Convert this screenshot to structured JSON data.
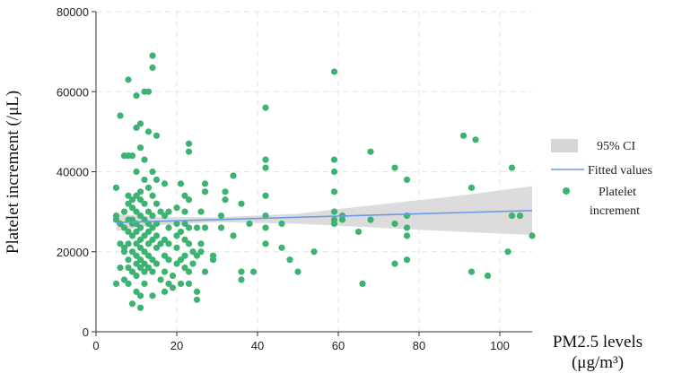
{
  "chart_data": {
    "type": "scatter",
    "xlabel_line1": "PM2.5 levels",
    "xlabel_line2": "(μg/m³)",
    "ylabel": "Platelet increment (/μL)",
    "xlim": [
      0,
      108
    ],
    "ylim": [
      0,
      80000
    ],
    "xticks": [
      0,
      20,
      40,
      60,
      80,
      100
    ],
    "yticks": [
      0,
      20000,
      40000,
      60000,
      80000
    ],
    "grid": true,
    "legend_position": "right",
    "legend": {
      "ci_label": "95% CI",
      "fit_label": "Fitted values",
      "points_label_line1": "Platelet",
      "points_label_line2": "increment"
    },
    "colors": {
      "points": "#3cb371",
      "fit_line": "#6b9ae8",
      "ci_band": "#d6d6d6",
      "grid": "#e6e6e6"
    },
    "fit_line": {
      "x": [
        5,
        108
      ],
      "y": [
        27300,
        30300
      ]
    },
    "ci_band": {
      "x": [
        5,
        15,
        30,
        50,
        70,
        90,
        108
      ],
      "lower": [
        25200,
        26600,
        27400,
        27000,
        26000,
        25000,
        24200
      ],
      "upper": [
        29400,
        28700,
        28600,
        29500,
        31800,
        34000,
        36400
      ]
    },
    "points": [
      [
        5,
        36000
      ],
      [
        5,
        12000
      ],
      [
        5,
        29000
      ],
      [
        5,
        28000
      ],
      [
        6,
        54000
      ],
      [
        6,
        22000
      ],
      [
        6,
        16000
      ],
      [
        6,
        27000
      ],
      [
        7,
        44000
      ],
      [
        7,
        20000
      ],
      [
        7,
        13000
      ],
      [
        7,
        26000
      ],
      [
        7,
        30000
      ],
      [
        7,
        21000
      ],
      [
        8,
        63000
      ],
      [
        8,
        44000
      ],
      [
        8,
        34000
      ],
      [
        8,
        32000
      ],
      [
        8,
        28000
      ],
      [
        8,
        25000
      ],
      [
        8,
        22000
      ],
      [
        8,
        18000
      ],
      [
        8,
        16000
      ],
      [
        8,
        12000
      ],
      [
        9,
        44000
      ],
      [
        9,
        33000
      ],
      [
        9,
        31000
      ],
      [
        9,
        28000
      ],
      [
        9,
        27000
      ],
      [
        9,
        24000
      ],
      [
        9,
        20000
      ],
      [
        9,
        15000
      ],
      [
        9,
        7000
      ],
      [
        10,
        59000
      ],
      [
        10,
        51000
      ],
      [
        10,
        40000
      ],
      [
        10,
        34000
      ],
      [
        10,
        30000
      ],
      [
        10,
        27000
      ],
      [
        10,
        25000
      ],
      [
        10,
        22000
      ],
      [
        10,
        19000
      ],
      [
        10,
        17000
      ],
      [
        10,
        14000
      ],
      [
        10,
        10000
      ],
      [
        11,
        52000
      ],
      [
        11,
        46000
      ],
      [
        11,
        35000
      ],
      [
        11,
        33000
      ],
      [
        11,
        29000
      ],
      [
        11,
        26000
      ],
      [
        11,
        23000
      ],
      [
        11,
        21000
      ],
      [
        11,
        18000
      ],
      [
        11,
        16000
      ],
      [
        11,
        9000
      ],
      [
        11,
        6000
      ],
      [
        12,
        60000
      ],
      [
        12,
        43000
      ],
      [
        12,
        38000
      ],
      [
        12,
        32000
      ],
      [
        12,
        28000
      ],
      [
        12,
        24000
      ],
      [
        12,
        20000
      ],
      [
        12,
        17000
      ],
      [
        12,
        15000
      ],
      [
        12,
        12000
      ],
      [
        13,
        60000
      ],
      [
        13,
        50000
      ],
      [
        13,
        36000
      ],
      [
        13,
        30000
      ],
      [
        13,
        27000
      ],
      [
        13,
        25000
      ],
      [
        13,
        22000
      ],
      [
        13,
        19000
      ],
      [
        13,
        16000
      ],
      [
        14,
        69000
      ],
      [
        14,
        66000
      ],
      [
        14,
        40000
      ],
      [
        14,
        34000
      ],
      [
        14,
        29000
      ],
      [
        14,
        26000
      ],
      [
        14,
        23000
      ],
      [
        14,
        18000
      ],
      [
        14,
        15000
      ],
      [
        14,
        9000
      ],
      [
        15,
        49000
      ],
      [
        15,
        38000
      ],
      [
        15,
        32000
      ],
      [
        15,
        27000
      ],
      [
        15,
        24000
      ],
      [
        15,
        21000
      ],
      [
        15,
        17000
      ],
      [
        16,
        30000
      ],
      [
        16,
        22000
      ],
      [
        16,
        13000
      ],
      [
        17,
        37000
      ],
      [
        17,
        29000
      ],
      [
        17,
        23000
      ],
      [
        17,
        19000
      ],
      [
        17,
        15000
      ],
      [
        17,
        10000
      ],
      [
        18,
        30000
      ],
      [
        18,
        26000
      ],
      [
        18,
        22000
      ],
      [
        18,
        18000
      ],
      [
        18,
        12000
      ],
      [
        19,
        11000
      ],
      [
        19,
        14000
      ],
      [
        20,
        31000
      ],
      [
        20,
        27000
      ],
      [
        20,
        24000
      ],
      [
        20,
        21000
      ],
      [
        20,
        17000
      ],
      [
        21,
        37000
      ],
      [
        21,
        25000
      ],
      [
        21,
        18000
      ],
      [
        21,
        12000
      ],
      [
        22,
        34000
      ],
      [
        22,
        30000
      ],
      [
        22,
        27000
      ],
      [
        22,
        23000
      ],
      [
        22,
        19000
      ],
      [
        22,
        16000
      ],
      [
        23,
        47000
      ],
      [
        23,
        45000
      ],
      [
        23,
        33000
      ],
      [
        23,
        26000
      ],
      [
        23,
        22000
      ],
      [
        23,
        15000
      ],
      [
        23,
        12000
      ],
      [
        24,
        20000
      ],
      [
        24,
        17000
      ],
      [
        25,
        26000
      ],
      [
        25,
        19000
      ],
      [
        25,
        10000
      ],
      [
        25,
        8000
      ],
      [
        26,
        30000
      ],
      [
        26,
        22000
      ],
      [
        26,
        20000
      ],
      [
        27,
        37000
      ],
      [
        27,
        35000
      ],
      [
        27,
        26000
      ],
      [
        27,
        15000
      ],
      [
        29,
        19000
      ],
      [
        29,
        18000
      ],
      [
        31,
        29000
      ],
      [
        31,
        26000
      ],
      [
        32,
        35000
      ],
      [
        32,
        33000
      ],
      [
        34,
        39000
      ],
      [
        34,
        24000
      ],
      [
        36,
        13000
      ],
      [
        36,
        15000
      ],
      [
        36,
        32000
      ],
      [
        38,
        27000
      ],
      [
        39,
        15000
      ],
      [
        42,
        56000
      ],
      [
        42,
        43000
      ],
      [
        42,
        41000
      ],
      [
        42,
        34000
      ],
      [
        42,
        29000
      ],
      [
        42,
        26000
      ],
      [
        42,
        22000
      ],
      [
        46,
        27000
      ],
      [
        46,
        21000
      ],
      [
        48,
        18000
      ],
      [
        50,
        15000
      ],
      [
        54,
        20000
      ],
      [
        59,
        65000
      ],
      [
        59,
        43000
      ],
      [
        59,
        40000
      ],
      [
        59,
        35000
      ],
      [
        59,
        30000
      ],
      [
        59,
        28000
      ],
      [
        59,
        27000
      ],
      [
        61,
        29000
      ],
      [
        61,
        28000
      ],
      [
        65,
        25000
      ],
      [
        66,
        12000
      ],
      [
        68,
        45000
      ],
      [
        68,
        28000
      ],
      [
        74,
        41000
      ],
      [
        74,
        27000
      ],
      [
        74,
        17000
      ],
      [
        77,
        38000
      ],
      [
        77,
        29000
      ],
      [
        77,
        26000
      ],
      [
        77,
        24000
      ],
      [
        77,
        18000
      ],
      [
        91,
        49000
      ],
      [
        93,
        36000
      ],
      [
        93,
        15000
      ],
      [
        94,
        48000
      ],
      [
        97,
        14000
      ],
      [
        102,
        20000
      ],
      [
        103,
        41000
      ],
      [
        103,
        29000
      ],
      [
        105,
        29000
      ],
      [
        108,
        24000
      ]
    ]
  }
}
